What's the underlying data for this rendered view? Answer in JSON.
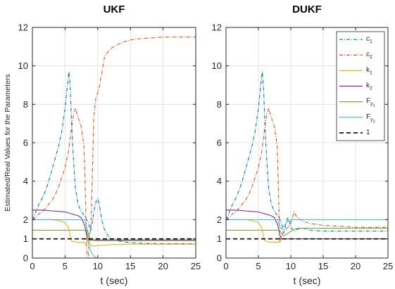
{
  "figure": {
    "ylabel": "Estimated/Real Values for the Parameters"
  },
  "colors": {
    "c1": "#0072BD",
    "c2": "#D95319",
    "k1": "#EDB120",
    "k2": "#7E2F8E",
    "Fy1": "#77AC30",
    "Fy2": "#4DBEEE",
    "ref": "#000000"
  },
  "chart_data": [
    {
      "type": "line",
      "title": "UKF",
      "xlabel": "t (sec)",
      "ylabel": "Estimated/Real Values for the Parameters",
      "xlim": [
        0,
        25
      ],
      "ylim": [
        0,
        12
      ],
      "xticks": [
        "0",
        "5",
        "10",
        "15",
        "20",
        "25"
      ],
      "yticks": [
        "0",
        "1",
        "2",
        "4",
        "6",
        "8",
        "10",
        "12"
      ],
      "grid": true,
      "series": [
        {
          "name": "c1",
          "key": "c1",
          "style": "dashdot",
          "x": [
            0,
            0.3,
            0.6,
            1.0,
            1.5,
            2.0,
            2.5,
            3.0,
            3.5,
            4.0,
            4.5,
            5.0,
            5.3,
            5.6,
            5.8,
            6.0,
            6.3,
            6.6,
            7.0,
            7.5,
            8.0,
            8.3,
            8.6,
            8.9,
            9.2,
            9.5,
            9.8,
            10.0,
            10.3,
            10.6,
            11.0,
            11.5,
            12,
            13,
            14,
            15,
            16,
            18,
            20,
            22,
            25
          ],
          "y": [
            2.0,
            2.2,
            2.5,
            2.8,
            3.1,
            3.5,
            4.0,
            4.6,
            5.2,
            5.8,
            6.6,
            7.8,
            8.8,
            9.7,
            8.8,
            7.0,
            5.0,
            3.6,
            2.8,
            2.4,
            2.2,
            2.0,
            1.8,
            1.4,
            1.9,
            2.6,
            3.0,
            3.1,
            2.7,
            2.0,
            1.5,
            1.2,
            1.0,
            0.9,
            0.85,
            0.8,
            0.78,
            0.76,
            0.75,
            0.75,
            0.75
          ]
        },
        {
          "name": "c2",
          "key": "c2",
          "style": "dashdot",
          "x": [
            0,
            0.5,
            1.0,
            1.5,
            2.0,
            2.5,
            3.0,
            3.5,
            4.0,
            4.5,
            5.0,
            5.5,
            6.0,
            6.3,
            6.6,
            7.0,
            7.5,
            7.9,
            8.1,
            8.3,
            8.5,
            8.7,
            9.0,
            9.4,
            9.7,
            10.0,
            10.3,
            10.6,
            11.0,
            11.5,
            12,
            13,
            14,
            15,
            16,
            18,
            20,
            22,
            25
          ],
          "y": [
            2.0,
            2.1,
            2.3,
            2.4,
            2.6,
            2.8,
            3.0,
            3.3,
            3.7,
            4.2,
            4.7,
            5.5,
            6.8,
            7.5,
            7.8,
            7.3,
            6.8,
            5.8,
            3.5,
            0.5,
            -0.3,
            0.9,
            2.0,
            7.3,
            8.3,
            8.6,
            9.0,
            9.6,
            10.4,
            10.7,
            10.9,
            11.1,
            11.25,
            11.35,
            11.4,
            11.45,
            11.5,
            11.5,
            11.5
          ]
        },
        {
          "name": "k1",
          "key": "k1",
          "style": "solid",
          "x": [
            0,
            1,
            2,
            3,
            4,
            5,
            5.5,
            5.8,
            6.0,
            6.3,
            6.8,
            7.5,
            8.0,
            8.3,
            8.5,
            8.7,
            9.0,
            9.5,
            10,
            11,
            12,
            15,
            20,
            25
          ],
          "y": [
            2.0,
            2.0,
            2.0,
            2.0,
            1.95,
            1.85,
            1.6,
            1.1,
            0.9,
            0.85,
            0.83,
            0.82,
            0.82,
            0.6,
            1.3,
            0.85,
            0.65,
            0.62,
            0.65,
            0.68,
            0.7,
            0.72,
            0.72,
            0.72
          ]
        },
        {
          "name": "k2",
          "key": "k2",
          "style": "solid",
          "x": [
            0,
            1,
            2,
            3,
            4,
            5,
            6,
            7,
            7.5,
            8.0,
            8.3,
            8.6,
            9.0,
            10,
            12,
            15,
            20,
            25
          ],
          "y": [
            2.5,
            2.5,
            2.48,
            2.45,
            2.43,
            2.4,
            2.3,
            2.2,
            2.1,
            1.7,
            1.2,
            0.95,
            0.93,
            0.92,
            0.92,
            0.92,
            0.92,
            0.92
          ]
        },
        {
          "name": "Fy1",
          "key": "Fy1",
          "style": "solid",
          "x": [
            0,
            8.2,
            8.4,
            8.6,
            8.8,
            9,
            10,
            25
          ],
          "y": [
            1.45,
            1.45,
            1.5,
            1.2,
            1.0,
            0.95,
            0.95,
            0.95
          ]
        },
        {
          "name": "Fy2",
          "key": "Fy2",
          "style": "solid",
          "x": [
            0,
            8.0,
            8.3,
            8.6,
            9.0,
            9.3,
            9.6,
            10,
            12,
            15,
            20,
            25
          ],
          "y": [
            2.0,
            2.0,
            1.6,
            0.7,
            0.3,
            0.15,
            0.05,
            0.0,
            0.0,
            0.0,
            0.0,
            0.0
          ]
        },
        {
          "name": "1",
          "key": "ref",
          "style": "dashed",
          "x": [
            0,
            25
          ],
          "y": [
            1,
            1
          ]
        }
      ]
    },
    {
      "type": "line",
      "title": "DUKF",
      "xlabel": "t (sec)",
      "xlim": [
        0,
        25
      ],
      "ylim": [
        0,
        12
      ],
      "xticks": [
        "0",
        "5",
        "10",
        "15",
        "20",
        "25"
      ],
      "yticks": [
        "0",
        "1",
        "2",
        "4",
        "6",
        "8",
        "10",
        "12"
      ],
      "grid": true,
      "legend": {
        "placement": "top-right",
        "entries": [
          {
            "key": "c1",
            "base": "c",
            "sub": "1",
            "style": "dashdot"
          },
          {
            "key": "c2",
            "base": "c",
            "sub": "2",
            "style": "dashdot"
          },
          {
            "key": "k1",
            "base": "k",
            "sub": "1",
            "style": "solid"
          },
          {
            "key": "k2",
            "base": "k",
            "sub": "2",
            "style": "solid"
          },
          {
            "key": "Fy1",
            "base": "F",
            "sub": "y",
            "subsub": "1",
            "style": "solid"
          },
          {
            "key": "Fy2",
            "base": "F",
            "sub": "y",
            "subsub": "2",
            "style": "solid"
          },
          {
            "key": "ref",
            "base": "1",
            "sub": "",
            "style": "dashed"
          }
        ]
      },
      "series": [
        {
          "name": "c1",
          "key": "c1",
          "style": "dashdot",
          "x": [
            0,
            0.3,
            0.6,
            1.0,
            1.5,
            2.0,
            2.5,
            3.0,
            3.5,
            4.0,
            4.5,
            5.0,
            5.3,
            5.6,
            5.8,
            6.0,
            6.3,
            6.6,
            7.0,
            7.5,
            8.0,
            8.3,
            8.6,
            8.9,
            9.2,
            9.5,
            9.8,
            10.0,
            10.5,
            11,
            12,
            13,
            14,
            15,
            18,
            20,
            25
          ],
          "y": [
            2.0,
            2.2,
            2.5,
            2.8,
            3.1,
            3.5,
            4.0,
            4.6,
            5.2,
            5.8,
            6.6,
            7.8,
            8.8,
            9.7,
            8.8,
            7.0,
            5.0,
            3.6,
            2.8,
            2.4,
            2.2,
            2.0,
            1.8,
            1.3,
            1.7,
            2.1,
            1.9,
            1.6,
            1.4,
            1.5,
            1.55,
            1.45,
            1.42,
            1.4,
            1.4,
            1.4,
            1.4
          ]
        },
        {
          "name": "c2",
          "key": "c2",
          "style": "dashdot",
          "x": [
            0,
            0.5,
            1.0,
            1.5,
            2.0,
            2.5,
            3.0,
            3.5,
            4.0,
            4.5,
            5.0,
            5.5,
            6.0,
            6.3,
            6.6,
            7.0,
            7.5,
            7.9,
            8.1,
            8.3,
            8.5,
            8.8,
            9.2,
            9.6,
            10.0,
            10.5,
            11,
            12,
            13,
            15,
            18,
            20,
            25
          ],
          "y": [
            2.0,
            2.1,
            2.3,
            2.4,
            2.6,
            2.8,
            3.0,
            3.3,
            3.7,
            4.2,
            4.7,
            5.5,
            6.8,
            7.5,
            7.8,
            7.3,
            6.8,
            5.8,
            3.5,
            0.8,
            1.1,
            1.3,
            1.5,
            1.6,
            1.8,
            2.4,
            2.1,
            1.9,
            1.8,
            1.7,
            1.65,
            1.6,
            1.6
          ]
        },
        {
          "name": "k1",
          "key": "k1",
          "style": "solid",
          "x": [
            0,
            1,
            2,
            3,
            4,
            5,
            5.5,
            5.8,
            6.0,
            6.3,
            6.8,
            7.5,
            8.0,
            8.3,
            8.6,
            9.0,
            10,
            12,
            15,
            20,
            25
          ],
          "y": [
            2.0,
            2.0,
            2.0,
            2.0,
            1.95,
            1.85,
            1.6,
            1.1,
            0.9,
            0.85,
            0.83,
            0.82,
            0.82,
            0.9,
            0.98,
            1.0,
            1.0,
            1.0,
            1.0,
            1.0,
            1.0
          ]
        },
        {
          "name": "k2",
          "key": "k2",
          "style": "solid",
          "x": [
            0,
            1,
            2,
            3,
            4,
            5,
            6,
            7,
            7.5,
            8.0,
            8.3,
            8.6,
            9.0,
            10,
            12,
            15,
            20,
            25
          ],
          "y": [
            2.5,
            2.5,
            2.48,
            2.45,
            2.43,
            2.4,
            2.3,
            2.2,
            2.1,
            1.7,
            1.2,
            1.0,
            1.0,
            1.0,
            1.0,
            1.0,
            1.0,
            1.0
          ]
        },
        {
          "name": "Fy1",
          "key": "Fy1",
          "style": "solid",
          "x": [
            0,
            8.2,
            8.5,
            8.8,
            9.2,
            9.8,
            10.5,
            11,
            12,
            14,
            16,
            20,
            25
          ],
          "y": [
            1.45,
            1.45,
            1.35,
            1.15,
            1.2,
            1.35,
            1.5,
            1.55,
            1.55,
            1.55,
            1.55,
            1.55,
            1.55
          ]
        },
        {
          "name": "Fy2",
          "key": "Fy2",
          "style": "solid",
          "x": [
            0,
            8.0,
            8.3,
            8.6,
            9.0,
            9.5,
            10,
            11,
            12,
            15,
            20,
            25
          ],
          "y": [
            2.0,
            2.0,
            1.6,
            1.5,
            1.7,
            1.9,
            2.0,
            2.0,
            2.0,
            2.0,
            2.0,
            2.0
          ]
        },
        {
          "name": "1",
          "key": "ref",
          "style": "dashed",
          "x": [
            0,
            25
          ],
          "y": [
            1,
            1
          ]
        }
      ]
    }
  ]
}
